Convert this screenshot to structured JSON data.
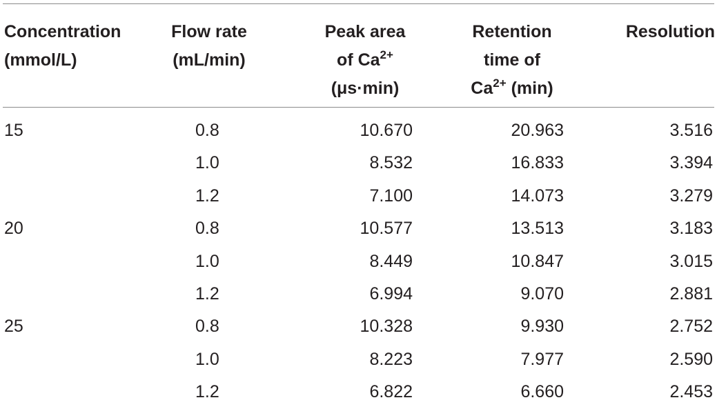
{
  "table": {
    "headers": {
      "concentration": [
        "Concentration",
        "(mmol/L)"
      ],
      "flow_rate": [
        "Flow rate",
        "(mL/min)"
      ],
      "peak_area": {
        "line1": "Peak area",
        "line2_prefix": "of Ca",
        "line2_sup": "2+",
        "line3": "(μs·min)"
      },
      "retention": {
        "line1": "Retention",
        "line2": "time of",
        "line3_prefix": "Ca",
        "line3_sup": "2+",
        "line3_suffix": " (min)"
      },
      "resolution": "Resolution"
    },
    "rows": [
      {
        "concentration": "15",
        "flow_rate": "0.8",
        "peak_area": "10.670",
        "retention_time": "20.963",
        "resolution": "3.516"
      },
      {
        "concentration": "",
        "flow_rate": "1.0",
        "peak_area": "8.532",
        "retention_time": "16.833",
        "resolution": "3.394"
      },
      {
        "concentration": "",
        "flow_rate": "1.2",
        "peak_area": "7.100",
        "retention_time": "14.073",
        "resolution": "3.279"
      },
      {
        "concentration": "20",
        "flow_rate": "0.8",
        "peak_area": "10.577",
        "retention_time": "13.513",
        "resolution": "3.183"
      },
      {
        "concentration": "",
        "flow_rate": "1.0",
        "peak_area": "8.449",
        "retention_time": "10.847",
        "resolution": "3.015"
      },
      {
        "concentration": "",
        "flow_rate": "1.2",
        "peak_area": "6.994",
        "retention_time": "9.070",
        "resolution": "2.881"
      },
      {
        "concentration": "25",
        "flow_rate": "0.8",
        "peak_area": "10.328",
        "retention_time": "9.930",
        "resolution": "2.752"
      },
      {
        "concentration": "",
        "flow_rate": "1.0",
        "peak_area": "8.223",
        "retention_time": "7.977",
        "resolution": "2.590"
      },
      {
        "concentration": "",
        "flow_rate": "1.2",
        "peak_area": "6.822",
        "retention_time": "6.660",
        "resolution": "2.453"
      }
    ]
  }
}
